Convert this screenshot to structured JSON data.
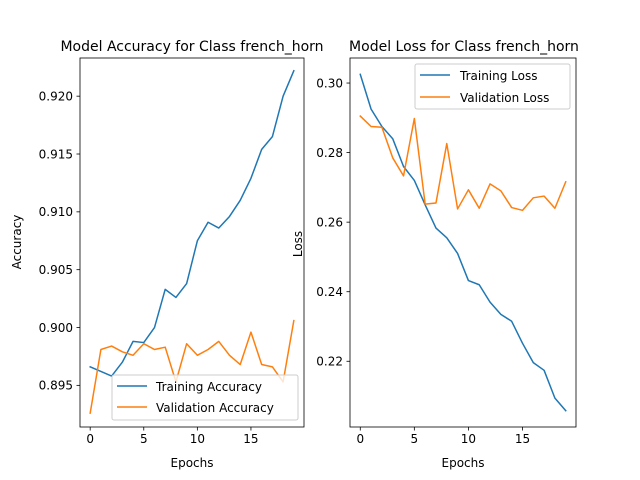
{
  "chart_data": [
    {
      "type": "line",
      "title": "Model Accuracy for Class french_horn",
      "xlabel": "Epochs",
      "ylabel": "Accuracy",
      "xlim": [
        -0.95,
        19.95
      ],
      "ylim": [
        0.8914,
        0.9233
      ],
      "xticks": [
        0,
        5,
        10,
        15
      ],
      "xtick_labels": [
        "0",
        "5",
        "10",
        "15"
      ],
      "yticks": [
        0.895,
        0.9,
        0.905,
        0.91,
        0.915,
        0.92
      ],
      "ytick_labels": [
        "0.895",
        "0.900",
        "0.905",
        "0.910",
        "0.915",
        "0.920"
      ],
      "legend_position": "lower-right",
      "x": [
        0,
        1,
        2,
        3,
        4,
        5,
        6,
        7,
        8,
        9,
        10,
        11,
        12,
        13,
        14,
        15,
        16,
        17,
        18,
        19
      ],
      "series": [
        {
          "name": "Training Accuracy",
          "color": "#1f77b4",
          "values": [
            0.8966,
            0.8962,
            0.8958,
            0.897,
            0.8988,
            0.8987,
            0.9,
            0.9033,
            0.9026,
            0.9038,
            0.9075,
            0.9091,
            0.9086,
            0.9096,
            0.911,
            0.9129,
            0.9154,
            0.9165,
            0.92,
            0.9222
          ]
        },
        {
          "name": "Validation Accuracy",
          "color": "#ff7f0e",
          "values": [
            0.8926,
            0.8981,
            0.8984,
            0.8979,
            0.8976,
            0.8986,
            0.8981,
            0.8983,
            0.8953,
            0.8986,
            0.8976,
            0.8981,
            0.8988,
            0.8976,
            0.8968,
            0.8996,
            0.8968,
            0.8966,
            0.8953,
            0.9006
          ]
        }
      ]
    },
    {
      "type": "line",
      "title": "Model Loss for Class french_horn",
      "xlabel": "Epochs",
      "ylabel": "Loss",
      "xlim": [
        -0.95,
        19.95
      ],
      "ylim": [
        0.2011,
        0.3072
      ],
      "xticks": [
        0,
        5,
        10,
        15
      ],
      "xtick_labels": [
        "0",
        "5",
        "10",
        "15"
      ],
      "yticks": [
        0.22,
        0.24,
        0.26,
        0.28,
        0.3
      ],
      "ytick_labels": [
        "0.22",
        "0.24",
        "0.26",
        "0.28",
        "0.30"
      ],
      "legend_position": "top-right",
      "x": [
        0,
        1,
        2,
        3,
        4,
        5,
        6,
        7,
        8,
        9,
        10,
        11,
        12,
        13,
        14,
        15,
        16,
        17,
        18,
        19
      ],
      "series": [
        {
          "name": "Training Loss",
          "color": "#1f77b4",
          "values": [
            0.3025,
            0.2925,
            0.2875,
            0.284,
            0.276,
            0.272,
            0.265,
            0.2583,
            0.2555,
            0.251,
            0.2432,
            0.242,
            0.237,
            0.2335,
            0.2315,
            0.2252,
            0.2196,
            0.2174,
            0.2094,
            0.2058
          ]
        },
        {
          "name": "Validation Loss",
          "color": "#ff7f0e",
          "values": [
            0.2905,
            0.2875,
            0.2873,
            0.2785,
            0.2733,
            0.2898,
            0.2652,
            0.2655,
            0.2826,
            0.2638,
            0.2693,
            0.264,
            0.271,
            0.269,
            0.2642,
            0.2634,
            0.267,
            0.2675,
            0.264,
            0.2716
          ]
        }
      ]
    }
  ]
}
